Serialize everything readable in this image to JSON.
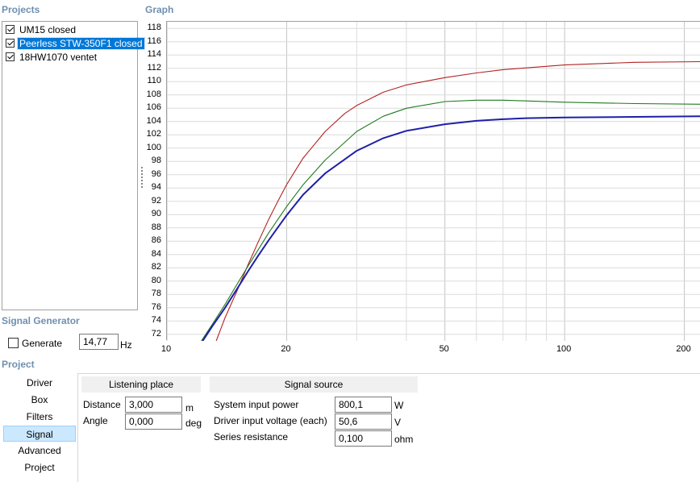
{
  "projects_panel": {
    "title": "Projects",
    "items": [
      {
        "label": "UM15 closed",
        "checked": true,
        "selected": false
      },
      {
        "label": "Peerless STW-350F1 closed",
        "checked": true,
        "selected": true
      },
      {
        "label": "18HW1070 ventet",
        "checked": true,
        "selected": false
      }
    ]
  },
  "signal_generator": {
    "title": "Signal Generator",
    "generate_label": "Generate",
    "generate_checked": false,
    "frequency_value": "14,77",
    "frequency_unit": "Hz"
  },
  "graph": {
    "title": "Graph"
  },
  "chart_data": {
    "type": "line",
    "x_scale": "log",
    "xlim": [
      10,
      220
    ],
    "ylim": [
      71,
      119
    ],
    "x_ticks": [
      "10",
      "20",
      "50",
      "100",
      "200"
    ],
    "y_ticks": [
      "72",
      "74",
      "76",
      "78",
      "80",
      "82",
      "84",
      "86",
      "88",
      "90",
      "92",
      "94",
      "96",
      "98",
      "100",
      "102",
      "104",
      "106",
      "108",
      "110",
      "112",
      "114",
      "116",
      "118"
    ],
    "grid": true,
    "series": [
      {
        "color": "#b22222",
        "x": [
          13.3,
          14,
          15,
          16,
          17,
          18,
          19,
          20,
          22,
          25,
          28,
          30,
          35,
          40,
          50,
          60,
          70,
          100,
          150,
          220
        ],
        "y": [
          71,
          74.5,
          78.5,
          82.5,
          86,
          89.2,
          92,
          94.5,
          98.5,
          102.5,
          105.2,
          106.4,
          108.4,
          109.5,
          110.6,
          111.3,
          111.8,
          112.5,
          112.9,
          113.0
        ]
      },
      {
        "color": "#1e7a1e",
        "x": [
          12.2,
          13,
          14,
          15,
          16,
          17,
          18,
          20,
          22,
          25,
          30,
          35,
          40,
          50,
          60,
          70,
          80,
          100,
          150,
          220
        ],
        "y": [
          71,
          73.5,
          76.5,
          79.5,
          82.3,
          84.8,
          87.2,
          91.2,
          94.5,
          98.2,
          102.5,
          104.8,
          106,
          107,
          107.2,
          107.2,
          107.1,
          106.9,
          106.7,
          106.6
        ]
      },
      {
        "color": "#1f1fa8",
        "bold": true,
        "x": [
          12.3,
          13,
          14,
          15,
          16,
          17,
          18,
          20,
          22,
          25,
          30,
          35,
          40,
          50,
          60,
          70,
          80,
          100,
          150,
          220
        ],
        "y": [
          71,
          73.2,
          76,
          78.8,
          81.5,
          83.9,
          86.1,
          89.9,
          93,
          96.2,
          99.6,
          101.5,
          102.6,
          103.6,
          104.1,
          104.35,
          104.5,
          104.6,
          104.7,
          104.8
        ]
      }
    ]
  },
  "project_panel": {
    "title": "Project",
    "nav": [
      {
        "label": "Driver",
        "active": false
      },
      {
        "label": "Box",
        "active": false
      },
      {
        "label": "Filters",
        "active": false
      },
      {
        "label": "Signal",
        "active": true
      },
      {
        "label": "Advanced",
        "active": false
      },
      {
        "label": "Project",
        "active": false
      }
    ]
  },
  "listening_place": {
    "header": "Listening place",
    "distance_label": "Distance",
    "distance_value": "3,000",
    "distance_unit": "m",
    "angle_label": "Angle",
    "angle_value": "0,000",
    "angle_unit": "deg"
  },
  "signal_source": {
    "header": "Signal source",
    "power_label": "System input power",
    "power_value": "800,1",
    "power_unit": "W",
    "voltage_label": "Driver input voltage (each)",
    "voltage_value": "50,6",
    "voltage_unit": "V",
    "resistance_label": "Series resistance",
    "resistance_value": "0,100",
    "resistance_unit": "ohm"
  }
}
